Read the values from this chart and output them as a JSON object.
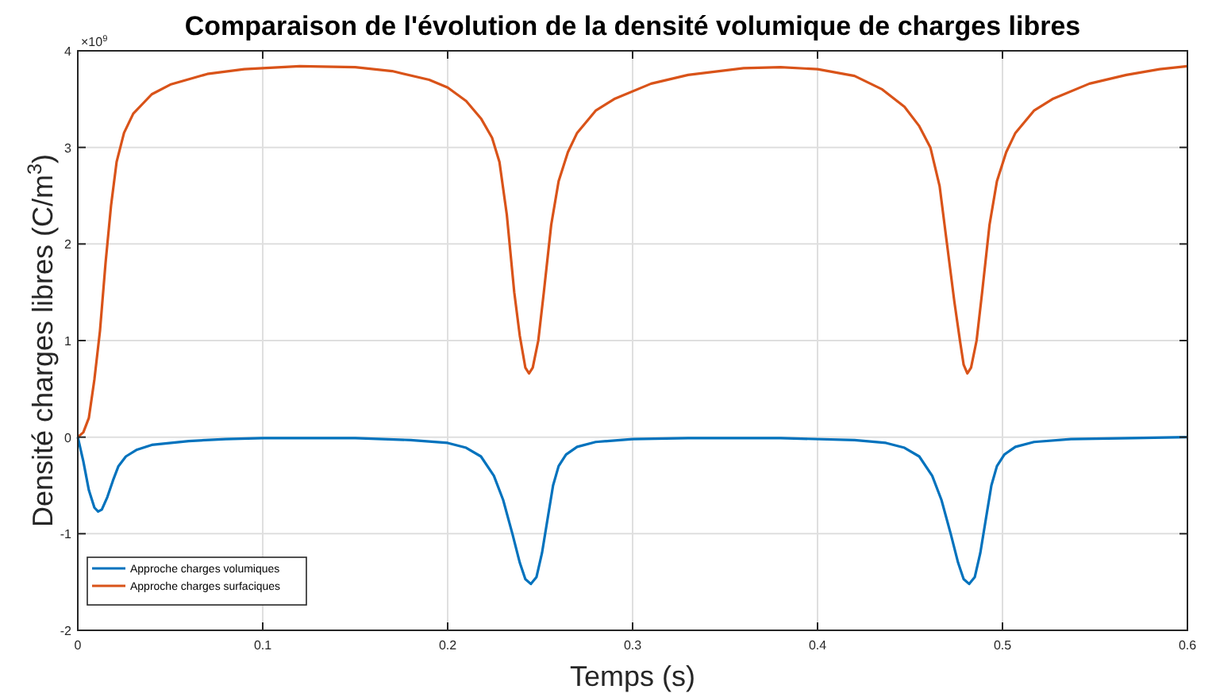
{
  "chart_data": {
    "type": "line",
    "title": "Comparaison de l'évolution de la densité volumique de charges libres",
    "xlabel": "Temps (s)",
    "ylabel": "Densité charges libres (C/m$^{3}$)",
    "annotations": [
      "×10$^{9}$"
    ],
    "xlim": [
      0,
      0.6
    ],
    "xticks": [
      0,
      0.1,
      0.2,
      0.3,
      0.4,
      0.5,
      0.6
    ],
    "ylim": [
      -2,
      4
    ],
    "yticks": [
      -2,
      -1,
      0,
      1,
      2,
      3,
      4
    ],
    "grid": true,
    "legend": "bottom left",
    "line_style": "solid",
    "marker": "none",
    "series": [
      {
        "name": "Approche charges volumiques",
        "color": "#0072bd",
        "x": [
          0,
          0.003,
          0.006,
          0.009,
          0.011,
          0.013,
          0.016,
          0.019,
          0.022,
          0.026,
          0.032,
          0.04,
          0.06,
          0.08,
          0.1,
          0.15,
          0.18,
          0.2,
          0.21,
          0.218,
          0.225,
          0.23,
          0.235,
          0.239,
          0.242,
          0.245,
          0.248,
          0.251,
          0.254,
          0.257,
          0.26,
          0.264,
          0.27,
          0.28,
          0.3,
          0.33,
          0.38,
          0.42,
          0.437,
          0.447,
          0.455,
          0.462,
          0.467,
          0.472,
          0.476,
          0.479,
          0.482,
          0.485,
          0.488,
          0.491,
          0.494,
          0.497,
          0.501,
          0.507,
          0.517,
          0.537,
          0.57,
          0.6
        ],
        "values": [
          0,
          -0.25,
          -0.55,
          -0.73,
          -0.77,
          -0.75,
          -0.62,
          -0.45,
          -0.3,
          -0.2,
          -0.13,
          -0.08,
          -0.04,
          -0.02,
          -0.01,
          -0.01,
          -0.03,
          -0.06,
          -0.11,
          -0.2,
          -0.4,
          -0.65,
          -1,
          -1.3,
          -1.47,
          -1.52,
          -1.45,
          -1.2,
          -0.85,
          -0.5,
          -0.3,
          -0.18,
          -0.1,
          -0.05,
          -0.02,
          -0.01,
          -0.01,
          -0.03,
          -0.06,
          -0.11,
          -0.2,
          -0.4,
          -0.65,
          -1,
          -1.3,
          -1.47,
          -1.52,
          -1.45,
          -1.2,
          -0.85,
          -0.5,
          -0.3,
          -0.18,
          -0.1,
          -0.05,
          -0.02,
          -0.01,
          0
        ]
      },
      {
        "name": "Approche charges surfaciques",
        "color": "#d95319",
        "x": [
          0,
          0.003,
          0.006,
          0.009,
          0.012,
          0.015,
          0.018,
          0.021,
          0.025,
          0.03,
          0.04,
          0.05,
          0.07,
          0.09,
          0.12,
          0.15,
          0.17,
          0.19,
          0.2,
          0.21,
          0.218,
          0.224,
          0.228,
          0.232,
          0.236,
          0.239,
          0.242,
          0.244,
          0.246,
          0.249,
          0.252,
          0.256,
          0.26,
          0.265,
          0.27,
          0.28,
          0.29,
          0.31,
          0.33,
          0.36,
          0.38,
          0.4,
          0.42,
          0.435,
          0.447,
          0.455,
          0.461,
          0.466,
          0.47,
          0.474,
          0.477,
          0.479,
          0.481,
          0.483,
          0.486,
          0.489,
          0.493,
          0.497,
          0.502,
          0.507,
          0.517,
          0.527,
          0.547,
          0.567,
          0.585,
          0.6
        ],
        "values": [
          0,
          0.05,
          0.2,
          0.6,
          1.1,
          1.8,
          2.4,
          2.85,
          3.15,
          3.35,
          3.55,
          3.65,
          3.76,
          3.81,
          3.84,
          3.83,
          3.79,
          3.7,
          3.62,
          3.48,
          3.3,
          3.1,
          2.85,
          2.3,
          1.5,
          1.05,
          0.72,
          0.66,
          0.72,
          1,
          1.5,
          2.2,
          2.65,
          2.95,
          3.15,
          3.38,
          3.5,
          3.66,
          3.75,
          3.82,
          3.83,
          3.81,
          3.74,
          3.6,
          3.42,
          3.22,
          3,
          2.6,
          2,
          1.4,
          1,
          0.75,
          0.66,
          0.72,
          1,
          1.5,
          2.2,
          2.65,
          2.95,
          3.15,
          3.38,
          3.5,
          3.66,
          3.75,
          3.81,
          3.84
        ]
      }
    ]
  }
}
